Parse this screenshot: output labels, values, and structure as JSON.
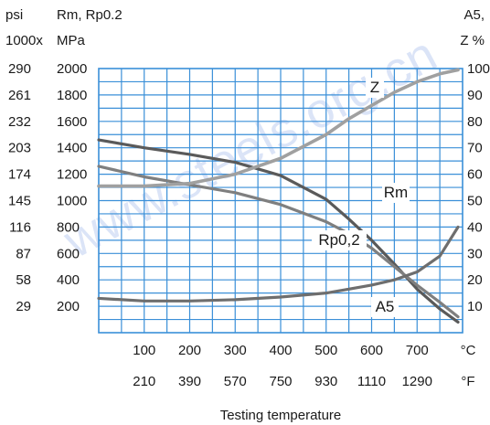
{
  "chart_data": {
    "type": "line",
    "header": {
      "left_unit_line1": "psi",
      "left_unit_line2": "1000x",
      "mid_unit_line1": "Rm, Rp0.2",
      "mid_unit_line2": "MPa",
      "right_unit_line1": "A5,",
      "right_unit_line2": "Z %"
    },
    "xlabel": "Testing temperature",
    "x_unit_c": "°C",
    "x_unit_f": "°F",
    "xlim": [
      0,
      800
    ],
    "x_ticks_c": [
      "100",
      "200",
      "300",
      "400",
      "500",
      "600",
      "700"
    ],
    "x_ticks_f": [
      "210",
      "390",
      "570",
      "750",
      "930",
      "1110",
      "1290"
    ],
    "y_left_mpa_ticks": [
      "200",
      "400",
      "600",
      "800",
      "1000",
      "1200",
      "1400",
      "1600",
      "1800",
      "2000"
    ],
    "y_left_psi_ticks": [
      "29",
      "58",
      "87",
      "116",
      "145",
      "174",
      "203",
      "232",
      "261",
      "290"
    ],
    "y_right_ticks": [
      "10",
      "20",
      "30",
      "40",
      "50",
      "60",
      "70",
      "80",
      "90",
      "100"
    ],
    "ylim_mpa": [
      0,
      2000
    ],
    "ylim_pct": [
      0,
      100
    ],
    "watermark": "www.steels.org.cn",
    "series": [
      {
        "name": "Rm",
        "axis": "mpa",
        "x": [
          0,
          100,
          200,
          300,
          400,
          500,
          550,
          600,
          650,
          700,
          750,
          790
        ],
        "y": [
          1460,
          1400,
          1350,
          1290,
          1190,
          1010,
          860,
          700,
          520,
          330,
          180,
          80
        ]
      },
      {
        "name": "Rp0,2",
        "axis": "mpa",
        "x": [
          0,
          100,
          200,
          300,
          400,
          500,
          550,
          600,
          650,
          700,
          750,
          790
        ],
        "y": [
          1260,
          1180,
          1120,
          1060,
          970,
          840,
          750,
          640,
          500,
          360,
          230,
          120
        ]
      },
      {
        "name": "Z",
        "axis": "pct",
        "x": [
          0,
          100,
          200,
          300,
          400,
          500,
          550,
          600,
          650,
          700,
          750,
          790
        ],
        "y": [
          55.5,
          55.5,
          56.5,
          60,
          66,
          75,
          81,
          86,
          91,
          95,
          98,
          99.5
        ]
      },
      {
        "name": "A5",
        "axis": "pct",
        "x": [
          0,
          100,
          200,
          300,
          400,
          500,
          550,
          600,
          650,
          700,
          750,
          790
        ],
        "y": [
          13,
          12,
          12,
          12.5,
          13.5,
          15,
          16.5,
          18,
          20,
          23,
          29,
          40
        ]
      }
    ],
    "colors": {
      "grid": "#3a8fd8",
      "Rm": "#5a5a5a",
      "Rp0,2": "#7f7f7f",
      "Z": "#a0a0a0",
      "A5": "#6e6e6e"
    },
    "grid": true
  }
}
